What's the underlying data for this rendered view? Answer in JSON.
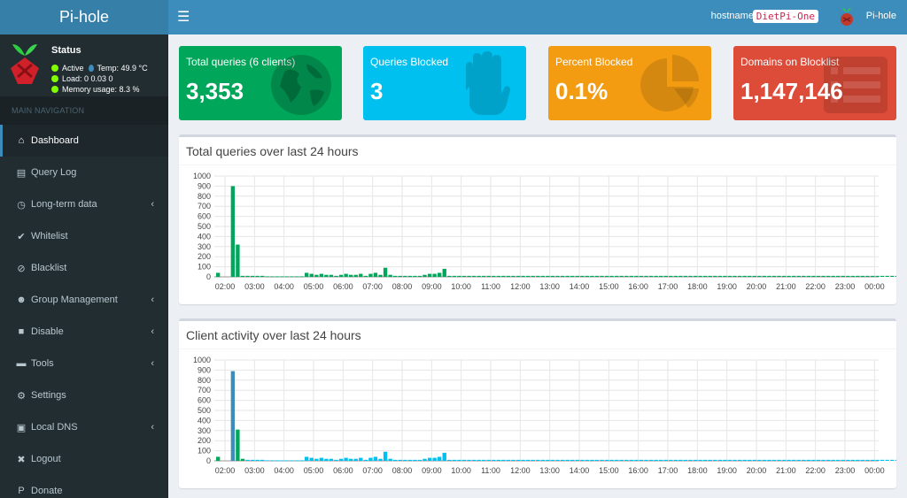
{
  "app": {
    "logo_text": "Pi-hole"
  },
  "header": {
    "hostname_label": "hostname:",
    "hostname": "DietPi-One",
    "user": "Pi-hole"
  },
  "sidebar": {
    "status_title": "Status",
    "status_active": "Active",
    "temp": "Temp: 49.9 °C",
    "load": "Load:  0  0.03  0",
    "memory": "Memory usage:  8.3 %",
    "nav_header": "MAIN NAVIGATION",
    "items": [
      {
        "label": "Dashboard",
        "icon": "home-icon",
        "glyph": "⌂",
        "active": true,
        "chevron": false
      },
      {
        "label": "Query Log",
        "icon": "file-icon",
        "glyph": "▤",
        "active": false,
        "chevron": false
      },
      {
        "label": "Long-term data",
        "icon": "clock-icon",
        "glyph": "◷",
        "active": false,
        "chevron": true
      },
      {
        "label": "Whitelist",
        "icon": "check-circle-icon",
        "glyph": "✔",
        "active": false,
        "chevron": false
      },
      {
        "label": "Blacklist",
        "icon": "ban-icon",
        "glyph": "⊘",
        "active": false,
        "chevron": false
      },
      {
        "label": "Group Management",
        "icon": "users-icon",
        "glyph": "☻",
        "active": false,
        "chevron": true
      },
      {
        "label": "Disable",
        "icon": "stop-icon",
        "glyph": "■",
        "active": false,
        "chevron": true
      },
      {
        "label": "Tools",
        "icon": "folder-icon",
        "glyph": "▬",
        "active": false,
        "chevron": true
      },
      {
        "label": "Settings",
        "icon": "gears-icon",
        "glyph": "⚙",
        "active": false,
        "chevron": false
      },
      {
        "label": "Local DNS",
        "icon": "address-book-icon",
        "glyph": "▣",
        "active": false,
        "chevron": true
      },
      {
        "label": "Logout",
        "icon": "user-times-icon",
        "glyph": "✖",
        "active": false,
        "chevron": false
      },
      {
        "label": "Donate",
        "icon": "paypal-icon",
        "glyph": "P",
        "active": false,
        "chevron": false
      }
    ]
  },
  "boxes": [
    {
      "title": "Total queries (6 clients)",
      "value": "3,353",
      "color": "#00a65a",
      "icon": "globe-icon"
    },
    {
      "title": "Queries Blocked",
      "value": "3",
      "color": "#00c0ef",
      "icon": "hand-icon"
    },
    {
      "title": "Percent Blocked",
      "value": "0.1%",
      "color": "#f39c12",
      "icon": "pie-chart-icon"
    },
    {
      "title": "Domains on Blocklist",
      "value": "1,147,146",
      "color": "#dd4b39",
      "icon": "list-icon"
    }
  ],
  "chart_data": [
    {
      "type": "bar",
      "title": "Total queries over last 24 hours",
      "ylim": [
        0,
        1000
      ],
      "yticks": [
        0,
        100,
        200,
        300,
        400,
        500,
        600,
        700,
        800,
        900,
        1000
      ],
      "xticks": [
        "02:00",
        "03:00",
        "04:00",
        "05:00",
        "06:00",
        "07:00",
        "08:00",
        "09:00",
        "10:00",
        "11:00",
        "12:00",
        "13:00",
        "14:00",
        "15:00",
        "16:00",
        "17:00",
        "18:00",
        "19:00",
        "20:00",
        "21:00",
        "22:00",
        "23:00",
        "00:00"
      ],
      "bars_per_hour": 6,
      "series": [
        {
          "color": "#00a65a",
          "values": [
            40,
            0,
            0,
            900,
            320,
            10,
            10,
            10,
            10,
            10,
            5,
            5,
            5,
            5,
            5,
            5,
            5,
            5,
            40,
            30,
            20,
            30,
            20,
            20,
            10,
            20,
            30,
            20,
            20,
            30,
            10,
            30,
            40,
            20,
            90,
            20,
            10,
            10,
            10,
            10,
            10,
            10,
            20,
            30,
            30,
            40,
            80,
            10,
            10,
            10,
            10,
            10,
            10,
            10,
            10,
            10,
            10,
            10,
            10,
            10,
            10,
            10,
            10,
            10,
            10,
            10,
            10,
            10,
            10,
            10,
            10,
            10,
            10,
            10,
            10,
            10,
            10,
            10,
            10,
            10,
            10,
            10,
            10,
            10,
            10,
            10,
            10,
            10,
            10,
            10,
            10,
            10,
            10,
            10,
            10,
            10,
            10,
            10,
            10,
            10,
            10,
            10,
            10,
            10,
            10,
            10,
            10,
            10,
            10,
            10,
            10,
            10,
            10,
            10,
            10,
            10,
            10,
            10,
            10,
            10,
            10,
            10,
            10,
            10,
            10,
            10,
            10,
            10,
            10,
            10,
            10,
            10,
            10,
            10,
            10,
            10,
            10,
            10,
            10,
            10,
            10,
            10,
            10,
            10,
            10,
            10,
            10,
            10,
            10,
            10,
            10,
            10,
            10,
            10,
            10,
            10,
            10,
            10,
            10,
            10,
            10,
            10,
            10,
            10,
            10,
            10,
            10,
            10,
            10,
            10,
            10,
            10,
            10,
            10,
            10,
            10,
            10,
            10,
            10,
            10,
            10,
            10,
            10,
            10,
            10,
            10,
            10,
            10,
            10,
            10,
            10,
            10,
            10,
            10,
            10,
            10,
            10,
            10,
            10,
            10,
            10,
            10,
            10,
            10,
            10,
            10,
            10,
            10,
            10,
            10,
            10,
            10,
            10,
            10,
            10,
            10,
            10,
            10,
            10,
            10,
            10,
            10,
            10,
            10,
            10,
            10,
            10,
            10,
            10,
            10,
            10,
            10,
            10,
            10,
            10,
            10,
            10,
            10,
            10,
            10,
            10,
            10,
            10,
            10,
            10,
            10,
            10,
            10,
            10,
            10,
            10,
            10,
            10,
            10,
            10,
            10,
            10,
            10,
            10,
            10,
            10,
            10,
            10,
            10,
            10,
            10,
            10,
            10,
            10,
            10,
            10,
            10,
            10,
            10,
            10,
            10,
            10,
            10,
            10,
            10,
            10,
            10,
            10,
            10,
            10,
            10,
            10,
            10,
            10,
            10,
            10,
            10,
            10,
            10,
            10,
            10,
            10,
            10,
            10,
            10,
            10,
            10,
            10,
            10,
            10,
            10,
            10,
            10,
            10,
            10,
            10,
            10,
            10,
            10,
            10,
            10,
            10,
            10,
            10,
            10,
            10,
            10,
            10,
            10,
            10,
            10,
            10,
            10,
            10,
            10,
            10,
            10,
            10,
            10,
            20,
            10,
            10,
            10,
            10,
            10,
            10,
            10,
            10,
            10,
            10,
            10,
            10,
            10,
            10,
            10,
            10,
            10,
            10,
            10,
            10,
            10,
            10,
            10,
            10,
            10,
            10,
            10,
            10,
            10,
            10,
            10,
            10,
            10,
            10,
            10,
            10,
            10,
            10,
            10,
            10,
            10,
            10,
            10,
            10,
            10,
            10,
            10,
            10,
            10,
            10,
            10,
            10,
            10,
            10,
            10,
            10,
            10,
            10,
            10,
            10,
            10,
            10,
            10,
            10,
            10,
            10,
            10,
            10,
            10,
            10,
            10,
            10,
            10,
            10,
            10,
            10,
            10,
            10,
            10,
            10,
            10,
            10,
            10,
            10,
            10,
            10,
            10,
            10,
            10,
            10,
            10,
            10,
            10,
            10,
            10,
            10,
            10,
            10,
            10,
            10,
            10,
            10,
            10,
            20,
            10,
            10,
            10,
            10,
            10,
            10,
            10,
            10,
            10,
            10,
            10,
            10,
            10,
            10,
            10,
            10,
            20,
            10,
            10,
            10,
            10,
            10,
            10,
            10,
            10,
            10,
            10,
            10,
            10,
            10,
            10,
            10,
            10,
            10,
            10,
            10,
            10,
            10,
            10,
            10,
            10,
            10,
            10,
            10,
            10,
            10,
            10,
            10,
            10,
            10,
            10,
            10,
            20,
            10,
            10,
            80
          ]
        }
      ]
    },
    {
      "type": "bar",
      "title": "Client activity over last 24 hours",
      "ylim": [
        0,
        1000
      ],
      "yticks": [
        0,
        100,
        200,
        300,
        400,
        500,
        600,
        700,
        800,
        900,
        1000
      ],
      "xticks": [
        "02:00",
        "03:00",
        "04:00",
        "05:00",
        "06:00",
        "07:00",
        "08:00",
        "09:00",
        "10:00",
        "11:00",
        "12:00",
        "13:00",
        "14:00",
        "15:00",
        "16:00",
        "17:00",
        "18:00",
        "19:00",
        "20:00",
        "21:00",
        "22:00",
        "23:00",
        "00:00"
      ],
      "bars_per_hour": 6,
      "series": [
        {
          "color": "#3c8dbc",
          "values": [
            0,
            0,
            0,
            890,
            0,
            0,
            0,
            0,
            0,
            0,
            0,
            0,
            0,
            0,
            0,
            0,
            0,
            0,
            0,
            0,
            0,
            0,
            0,
            0,
            0,
            0,
            0,
            0,
            0,
            0,
            0,
            0,
            0,
            0,
            0,
            0,
            0,
            0,
            0,
            0,
            0,
            0,
            0,
            0,
            0,
            0,
            0,
            0,
            0,
            0,
            0,
            0,
            0,
            0,
            0,
            0,
            0,
            0,
            0,
            0,
            0,
            0,
            0,
            0,
            0,
            0,
            0,
            0,
            0,
            0,
            0,
            0,
            0,
            0,
            0,
            0,
            0,
            0,
            0,
            0,
            0,
            0,
            0,
            0,
            0,
            0,
            0,
            0,
            0,
            0,
            0,
            0,
            0,
            0,
            0,
            0,
            0,
            0,
            0,
            0,
            0,
            0,
            0,
            0,
            0,
            0,
            0,
            0,
            0,
            0,
            0,
            0,
            0,
            0,
            0,
            0,
            0,
            0,
            0,
            0,
            0,
            0,
            0,
            0,
            0,
            0,
            0,
            0,
            0,
            0,
            0,
            0,
            0,
            0,
            0,
            0,
            0,
            0,
            0,
            0
          ]
        },
        {
          "color": "#00a65a",
          "values": [
            40,
            0,
            0,
            0,
            310,
            20,
            0,
            0,
            0,
            0,
            0,
            0,
            0,
            0,
            0,
            0,
            0,
            0,
            0,
            0,
            0,
            0,
            0,
            0,
            0,
            0,
            0,
            0,
            0,
            0,
            0,
            0,
            0,
            0,
            0,
            0,
            0,
            0,
            0,
            0,
            0,
            0,
            0,
            0,
            0,
            0,
            0,
            0,
            0,
            0,
            0,
            0,
            0,
            0,
            0,
            0,
            0,
            0,
            0,
            0,
            0,
            0,
            0,
            0,
            0,
            0,
            0,
            0,
            0,
            0,
            0,
            0,
            0,
            0,
            0,
            0,
            0,
            0,
            0,
            0,
            0,
            0,
            0,
            0,
            0,
            0,
            0,
            0,
            0,
            0,
            0,
            0,
            0,
            0,
            0,
            0,
            0,
            0,
            0,
            0,
            0,
            0,
            0,
            0,
            0,
            0,
            0,
            0,
            0,
            0,
            0,
            0,
            0,
            0,
            0,
            0,
            0,
            0,
            0,
            0,
            0,
            0,
            0,
            0,
            0,
            0,
            0,
            0,
            0,
            0,
            0,
            0,
            0,
            0,
            0,
            0,
            0,
            0,
            0,
            0
          ]
        },
        {
          "color": "#00c0ef",
          "values": [
            0,
            0,
            0,
            0,
            0,
            0,
            10,
            10,
            10,
            10,
            5,
            5,
            5,
            5,
            5,
            5,
            5,
            5,
            40,
            30,
            20,
            30,
            20,
            20,
            10,
            20,
            30,
            20,
            20,
            30,
            10,
            30,
            40,
            20,
            90,
            20,
            10,
            10,
            10,
            10,
            10,
            10,
            20,
            30,
            30,
            40,
            80,
            10,
            10,
            10,
            10,
            10,
            10,
            10,
            10,
            10,
            10,
            10,
            10,
            10,
            10,
            10,
            10,
            10,
            10,
            10,
            10,
            10,
            10,
            10,
            10,
            10,
            10,
            10,
            10,
            10,
            10,
            10,
            10,
            10,
            10,
            10,
            10,
            10,
            10,
            10,
            10,
            10,
            10,
            10,
            10,
            10,
            10,
            10,
            10,
            10,
            10,
            10,
            10,
            10,
            10,
            10,
            10,
            10,
            10,
            10,
            10,
            10,
            10,
            10,
            10,
            10,
            10,
            10,
            10,
            10,
            10,
            10,
            10,
            10,
            10,
            10,
            10,
            10,
            10,
            10,
            10,
            10,
            10,
            10,
            10,
            10,
            10,
            10,
            10,
            10,
            10,
            10,
            10,
            80
          ]
        }
      ]
    }
  ]
}
